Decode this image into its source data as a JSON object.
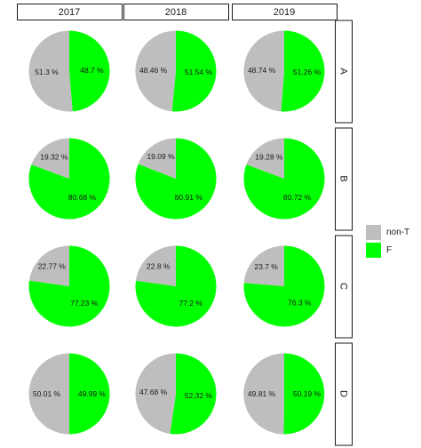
{
  "chart_data": {
    "type": "pie",
    "columns": [
      "2017",
      "2018",
      "2019"
    ],
    "rows": [
      "A",
      "B",
      "C",
      "D"
    ],
    "legend": {
      "position": "right",
      "entries": [
        "non-T",
        "F"
      ]
    },
    "colors": {
      "non-T": "#bebebe",
      "F": "#00ff00"
    },
    "panels": [
      {
        "row": "A",
        "col": "2017",
        "slices": [
          {
            "name": "non-T",
            "value": 51.3,
            "label": "51.3 %"
          },
          {
            "name": "F",
            "value": 48.7,
            "label": "48.7 %"
          }
        ]
      },
      {
        "row": "A",
        "col": "2018",
        "slices": [
          {
            "name": "non-T",
            "value": 48.46,
            "label": "48.46 %"
          },
          {
            "name": "F",
            "value": 51.54,
            "label": "51.54 %"
          }
        ]
      },
      {
        "row": "A",
        "col": "2019",
        "slices": [
          {
            "name": "non-T",
            "value": 48.74,
            "label": "48.74 %"
          },
          {
            "name": "F",
            "value": 51.26,
            "label": "51.26 %"
          }
        ]
      },
      {
        "row": "B",
        "col": "2017",
        "slices": [
          {
            "name": "non-T",
            "value": 19.32,
            "label": "19.32 %"
          },
          {
            "name": "F",
            "value": 80.68,
            "label": "80.68 %"
          }
        ]
      },
      {
        "row": "B",
        "col": "2018",
        "slices": [
          {
            "name": "non-T",
            "value": 19.09,
            "label": "19.09 %"
          },
          {
            "name": "F",
            "value": 80.91,
            "label": "80.91 %"
          }
        ]
      },
      {
        "row": "B",
        "col": "2019",
        "slices": [
          {
            "name": "non-T",
            "value": 19.28,
            "label": "19.28 %"
          },
          {
            "name": "F",
            "value": 80.72,
            "label": "80.72 %"
          }
        ]
      },
      {
        "row": "C",
        "col": "2017",
        "slices": [
          {
            "name": "non-T",
            "value": 22.77,
            "label": "22.77 %"
          },
          {
            "name": "F",
            "value": 77.23,
            "label": "77.23 %"
          }
        ]
      },
      {
        "row": "C",
        "col": "2018",
        "slices": [
          {
            "name": "non-T",
            "value": 22.8,
            "label": "22.8 %"
          },
          {
            "name": "F",
            "value": 77.2,
            "label": "77.2 %"
          }
        ]
      },
      {
        "row": "C",
        "col": "2019",
        "slices": [
          {
            "name": "non-T",
            "value": 23.7,
            "label": "23.7 %"
          },
          {
            "name": "F",
            "value": 76.3,
            "label": "76.3 %"
          }
        ]
      },
      {
        "row": "D",
        "col": "2017",
        "slices": [
          {
            "name": "non-T",
            "value": 50.01,
            "label": "50.01 %"
          },
          {
            "name": "F",
            "value": 49.99,
            "label": "49.99 %"
          }
        ]
      },
      {
        "row": "D",
        "col": "2018",
        "slices": [
          {
            "name": "non-T",
            "value": 47.68,
            "label": "47.68 %"
          },
          {
            "name": "F",
            "value": 52.32,
            "label": "52.32 %"
          }
        ]
      },
      {
        "row": "D",
        "col": "2019",
        "slices": [
          {
            "name": "non-T",
            "value": 49.81,
            "label": "49.81 %"
          },
          {
            "name": "F",
            "value": 50.19,
            "label": "50.19 %"
          }
        ]
      }
    ]
  }
}
